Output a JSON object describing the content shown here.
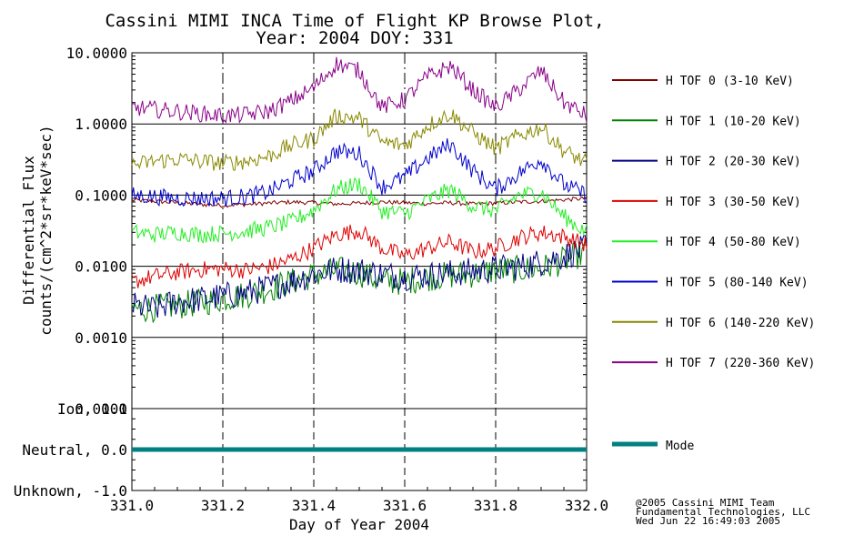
{
  "chart_data": [
    {
      "type": "line",
      "title": "Cassini MIMI INCA Time of Flight KP Browse Plot,",
      "subtitle": "Year: 2004 DOY: 331",
      "ylabel": "Differential Flux",
      "ylabel2": "counts/(cm^2*sr*keV*sec)",
      "yscale": "log",
      "ylim": [
        0.0001,
        10
      ],
      "xlim": [
        331.0,
        332.0
      ],
      "grid": true,
      "legend_position": "right",
      "y_tick_labels": [
        "10.0000",
        "1.0000",
        "0.1000",
        "0.0100",
        "0.0010",
        "0.0001"
      ],
      "y_ticks": [
        10,
        1,
        0.1,
        0.01,
        0.001,
        0.0001
      ],
      "series": [
        {
          "name": "H TOF 0 (3-10 KeV)",
          "color": "#800000",
          "values": [
            0.085,
            0.082,
            0.078,
            0.074,
            0.072,
            0.074,
            0.077,
            0.08,
            0.078,
            0.075,
            0.077,
            0.08,
            0.078,
            0.076,
            0.078,
            0.075,
            0.077,
            0.08,
            0.082,
            0.086,
            0.09
          ]
        },
        {
          "name": "H TOF 1 (10-20 KeV)",
          "color": "#008000",
          "values": [
            0.0025,
            0.0026,
            0.0028,
            0.0031,
            0.0035,
            0.004,
            0.0048,
            0.006,
            0.0075,
            0.0088,
            0.0082,
            0.006,
            0.0062,
            0.007,
            0.0075,
            0.0078,
            0.0088,
            0.009,
            0.0092,
            0.012,
            0.016
          ]
        },
        {
          "name": "H TOF 2 (20-30 KeV)",
          "color": "#000080",
          "values": [
            0.0028,
            0.0025,
            0.0032,
            0.0034,
            0.0038,
            0.0042,
            0.005,
            0.0062,
            0.0078,
            0.009,
            0.0088,
            0.0078,
            0.0072,
            0.0075,
            0.008,
            0.0085,
            0.0092,
            0.0098,
            0.0115,
            0.014,
            0.018
          ]
        },
        {
          "name": "H TOF 3 (30-50 KeV)",
          "color": "#dd0000",
          "values": [
            0.006,
            0.0072,
            0.0082,
            0.009,
            0.0092,
            0.0088,
            0.0098,
            0.0125,
            0.018,
            0.028,
            0.032,
            0.018,
            0.014,
            0.018,
            0.022,
            0.016,
            0.018,
            0.025,
            0.03,
            0.026,
            0.02
          ]
        },
        {
          "name": "H TOF 4 (50-80 KeV)",
          "color": "#22ee22",
          "values": [
            0.03,
            0.028,
            0.03,
            0.028,
            0.029,
            0.031,
            0.035,
            0.042,
            0.062,
            0.12,
            0.145,
            0.06,
            0.055,
            0.085,
            0.12,
            0.07,
            0.06,
            0.1,
            0.11,
            0.05,
            0.03
          ]
        },
        {
          "name": "H TOF 5 (80-140 KeV)",
          "color": "#0000cc",
          "values": [
            0.1,
            0.095,
            0.09,
            0.09,
            0.09,
            0.095,
            0.11,
            0.16,
            0.22,
            0.42,
            0.38,
            0.13,
            0.18,
            0.33,
            0.52,
            0.22,
            0.12,
            0.2,
            0.32,
            0.14,
            0.1
          ]
        },
        {
          "name": "H TOF 6 (140-220 KeV)",
          "color": "#888800",
          "values": [
            0.26,
            0.3,
            0.32,
            0.3,
            0.28,
            0.3,
            0.35,
            0.5,
            0.62,
            1.3,
            1.2,
            0.55,
            0.5,
            0.95,
            1.4,
            0.75,
            0.45,
            0.68,
            0.9,
            0.42,
            0.28
          ]
        },
        {
          "name": "H TOF 7 (220-360 KeV)",
          "color": "#880088",
          "values": [
            1.7,
            1.6,
            1.5,
            1.4,
            1.3,
            1.35,
            1.5,
            2.1,
            3.2,
            7.0,
            5.6,
            1.7,
            2.2,
            4.6,
            6.5,
            3.0,
            1.7,
            3.0,
            5.6,
            2.0,
            1.3
          ]
        }
      ]
    },
    {
      "type": "line",
      "xlabel": "Day of Year 2004",
      "ylim": [
        -1.0,
        1.0
      ],
      "y_tick_labels": [
        "Ion, 1.0",
        "Neutral, 0.0",
        "Unknown, -1.0"
      ],
      "y_ticks": [
        1.0,
        0.0,
        -1.0
      ],
      "x_tick_labels": [
        "331.0",
        "331.2",
        "331.4",
        "331.6",
        "331.8",
        "332.0"
      ],
      "x_ticks": [
        331.0,
        331.2,
        331.4,
        331.6,
        331.8,
        332.0
      ],
      "series": [
        {
          "name": "Mode",
          "color": "#008080",
          "values": [
            0.0,
            0.0
          ]
        }
      ]
    }
  ],
  "footer": {
    "line1": "@2005 Cassini MIMI Team",
    "line2": "Fundamental Technologies, LLC",
    "line3": "Wed Jun 22 16:49:03 2005"
  }
}
